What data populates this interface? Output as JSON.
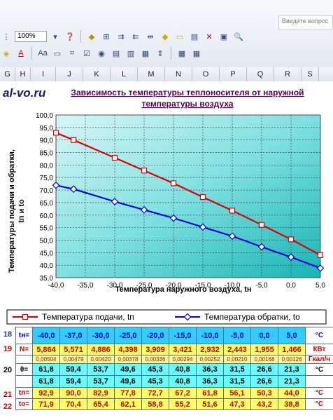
{
  "search": {
    "placeholder": "Введите вопрос"
  },
  "toolbar": {
    "zoom_value": "100%"
  },
  "columns": [
    "G",
    "H",
    "I",
    "J",
    "K",
    "L",
    "M",
    "N",
    "O",
    "P",
    "Q",
    "R",
    "S"
  ],
  "watermark": "al-vo.ru",
  "chart_data": {
    "type": "line",
    "title": "Зависимость температуры теплоносителя от наружной температуры воздуха",
    "title_lines": [
      "Зависимость температуры теплоносителя от наружной",
      "температуры воздуха"
    ],
    "xlabel": "Температура наружного воздуха, tн",
    "ylabel": "Температуры подачи и обратки, tп и to",
    "ylabel_lines": [
      "Температуры подачи и обратки,",
      "tп и to"
    ],
    "x": [
      -40,
      -37,
      -30,
      -25,
      -20,
      -15,
      -10,
      -5,
      0,
      5
    ],
    "xlim": [
      -40,
      5
    ],
    "ylim": [
      35,
      100
    ],
    "xticks": [
      "-40,0",
      "-35,0",
      "-30,0",
      "-25,0",
      "-20,0",
      "-15,0",
      "-10,0",
      "-5,0",
      "0,0",
      "5,0"
    ],
    "yticks": [
      "35,0",
      "40,0",
      "45,0",
      "50,0",
      "55,0",
      "60,0",
      "65,0",
      "70,0",
      "75,0",
      "80,0",
      "85,0",
      "90,0",
      "95,0",
      "100,0"
    ],
    "grid": true,
    "legend_position": "bottom",
    "series": [
      {
        "name": "Температура подачи, tп",
        "color": "#dd0000",
        "marker": "square",
        "values": [
          92.9,
          90.0,
          82.9,
          77.8,
          72.7,
          67.2,
          61.8,
          56.1,
          50.3,
          44.0
        ]
      },
      {
        "name": "Температура обратки, to",
        "color": "#0000dd",
        "marker": "diamond",
        "values": [
          71.9,
          70.4,
          65.4,
          62.1,
          58.8,
          55.2,
          51.6,
          47.3,
          43.2,
          38.8
        ]
      }
    ]
  },
  "table": {
    "rows": [
      {
        "num": "18",
        "label": "tн=",
        "unit": "°C",
        "values": [
          "-40,0",
          "-37,0",
          "-30,0",
          "-25,0",
          "-20,0",
          "-15,0",
          "-10,0",
          "-5,0",
          "0,0",
          "5,0"
        ]
      },
      {
        "num": "19",
        "label": "N=",
        "unit": "КВт",
        "values": [
          "5,864",
          "5,571",
          "4,886",
          "4,398",
          "3,909",
          "3,421",
          "2,932",
          "2,443",
          "1,955",
          "1,466"
        ]
      },
      {
        "num": "",
        "label": "",
        "unit": "Гкал/ч",
        "values": [
          "0,00504",
          "0,00479",
          "0,00420",
          "0,00378",
          "0,00336",
          "0,00294",
          "0,00252",
          "0,00210",
          "0,00168",
          "0,00126"
        ]
      },
      {
        "num": "20",
        "label": "θ=",
        "unit": "°C",
        "values": [
          "61,8",
          "59,4",
          "53,7",
          "49,6",
          "45,3",
          "40,8",
          "36,3",
          "31,5",
          "26,6",
          "21,3"
        ]
      },
      {
        "num": "",
        "label": "",
        "unit": "",
        "values": [
          "61,8",
          "59,4",
          "53,7",
          "49,6",
          "45,3",
          "40,8",
          "36,3",
          "31,5",
          "26,6",
          "21,3"
        ]
      },
      {
        "num": "21",
        "label": "tп=",
        "unit": "°C",
        "values": [
          "92,9",
          "90,0",
          "82,9",
          "77,8",
          "72,7",
          "67,2",
          "61,8",
          "56,1",
          "50,3",
          "44,0"
        ]
      },
      {
        "num": "22",
        "label": "to=",
        "unit": "°C",
        "values": [
          "71,9",
          "70,4",
          "65,4",
          "62,1",
          "58,8",
          "55,2",
          "51,6",
          "47,3",
          "43,2",
          "38,8"
        ]
      }
    ]
  }
}
